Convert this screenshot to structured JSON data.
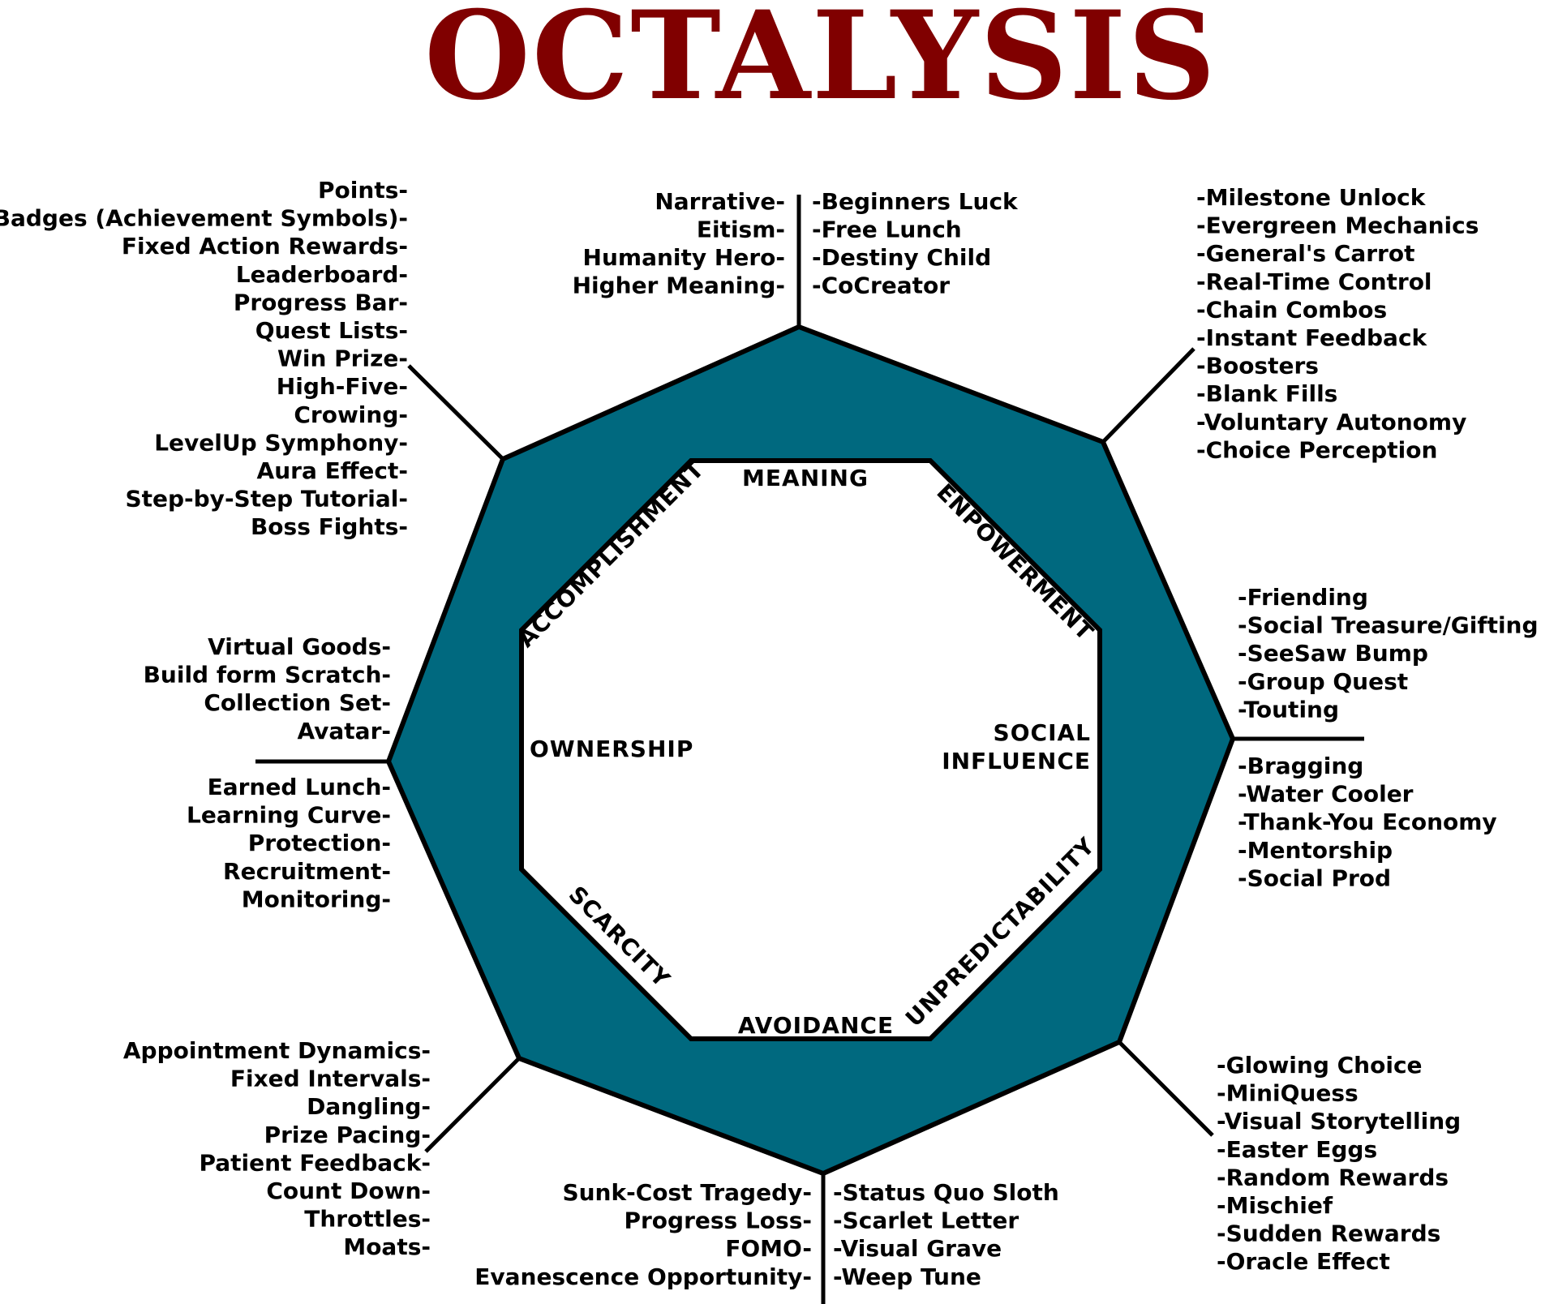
{
  "title": "OCTALYSIS",
  "colors": {
    "title": "#800000",
    "ring": "#00697f",
    "outline": "#000000",
    "inner": "#ffffff",
    "text": "#000000"
  },
  "core_drives": {
    "meaning": "MEANING",
    "empowerment": "ENPOWERMENT",
    "social_line1": "SOCIAL",
    "social_line2": "INFLUENCE",
    "unpredictability": "UNPREDICTABILITY",
    "avoidance": "AVOIDANCE",
    "scarcity": "SCARCITY",
    "ownership": "OWNERSHIP",
    "accomplishment": "ACCOMPLISHMENT"
  },
  "groups": {
    "accomplishment": [
      "Points-",
      "Badges (Achievement Symbols)-",
      "Fixed Action Rewards-",
      "Leaderboard-",
      "Progress Bar-",
      "Quest Lists-",
      "Win Prize-",
      "High-Five-",
      "Crowing-",
      "LevelUp Symphony-",
      "Aura Effect-",
      "Step-by-Step Tutorial-",
      "Boss Fights-"
    ],
    "meaning_left": [
      "Narrative-",
      "Eitism-",
      "Humanity Hero-",
      "Higher Meaning-"
    ],
    "meaning_right": [
      "-Beginners Luck",
      "-Free Lunch",
      "-Destiny Child",
      "-CoCreator"
    ],
    "empowerment": [
      "-Milestone Unlock",
      "-Evergreen Mechanics",
      "-General's Carrot",
      "-Real-Time Control",
      "-Chain Combos",
      "-Instant Feedback",
      "-Boosters",
      "-Blank Fills",
      "-Voluntary Autonomy",
      "-Choice Perception"
    ],
    "social_top": [
      "-Friending",
      "-Social Treasure/Gifting",
      "-SeeSaw Bump",
      "-Group Quest",
      "-Touting"
    ],
    "social_bottom": [
      "-Bragging",
      "-Water Cooler",
      "-Thank-You Economy",
      "-Mentorship",
      "-Social Prod"
    ],
    "ownership_top": [
      "Virtual Goods-",
      "Build form Scratch-",
      "Collection Set-",
      "Avatar-"
    ],
    "ownership_bottom": [
      "Earned Lunch-",
      "Learning Curve-",
      "Protection-",
      "Recruitment-",
      "Monitoring-"
    ],
    "scarcity": [
      "Appointment Dynamics-",
      "Fixed Intervals-",
      "Dangling-",
      "Prize Pacing-",
      "Patient Feedback-",
      "Count Down-",
      "Throttles-",
      "Moats-"
    ],
    "unpredictability": [
      "-Glowing Choice",
      "-MiniQuess",
      "-Visual Storytelling",
      "-Easter Eggs",
      "-Random Rewards",
      "-Mischief",
      "-Sudden Rewards",
      "-Oracle Effect"
    ],
    "avoidance_left": [
      "Sunk-Cost Tragedy-",
      "Progress Loss-",
      "FOMO-",
      "Evanescence Opportunity-"
    ],
    "avoidance_right": [
      "-Status Quo Sloth",
      "-Scarlet Letter",
      "-Visual Grave",
      "-Weep Tune"
    ]
  }
}
